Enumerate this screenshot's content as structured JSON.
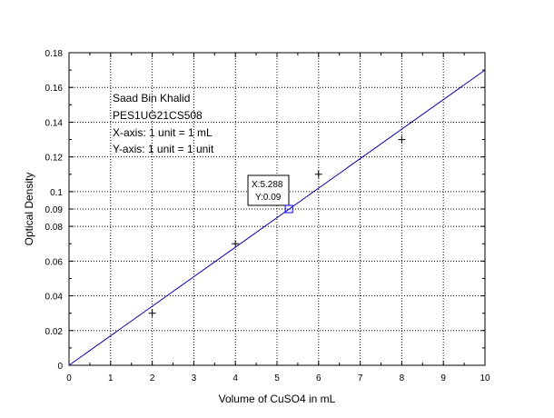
{
  "chart_data": {
    "type": "scatter",
    "xlabel": "Volume of CuSO4 in mL",
    "ylabel": "Optical Density",
    "xlim": [
      0,
      10
    ],
    "ylim": [
      0,
      0.18
    ],
    "grid": true,
    "x_ticks": [
      "0",
      "1",
      "2",
      "3",
      "4",
      "5",
      "6",
      "7",
      "8",
      "9",
      "10"
    ],
    "y_ticks": [
      "0",
      "0.02",
      "0.04",
      "0.06",
      "0.08",
      "0.09",
      "0.1",
      "0.12",
      "0.14",
      "0.16",
      "0.18"
    ],
    "y_tick_values": [
      0,
      0.02,
      0.04,
      0.06,
      0.08,
      0.09,
      0.1,
      0.12,
      0.14,
      0.16,
      0.18
    ],
    "series": [
      {
        "kind": "points",
        "marker": "plus",
        "color": "#000000",
        "points": [
          [
            2,
            0.03
          ],
          [
            4,
            0.07
          ],
          [
            6,
            0.11
          ],
          [
            8,
            0.13
          ]
        ]
      },
      {
        "kind": "line",
        "color": "#0000aa",
        "points": [
          [
            0,
            0.0
          ],
          [
            10,
            0.17
          ]
        ]
      }
    ],
    "annotation_lines": [
      "Saad Bin Khalid",
      "PES1UG21CS508",
      "X-axis: 1 unit = 1 mL",
      "Y-axis: 1 unit = 1 unit"
    ],
    "datatip": {
      "x": 5.288,
      "y": 0.09,
      "x_label": "X:5.288",
      "y_label": "Y:0.09"
    }
  }
}
